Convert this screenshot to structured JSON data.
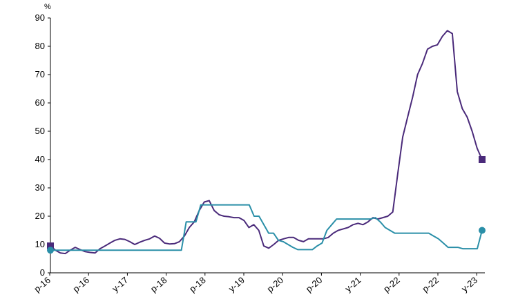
{
  "chart_data": {
    "type": "line",
    "title": "",
    "xlabel": "",
    "ylabel": "%",
    "ylim": [
      0,
      90
    ],
    "yticks": [
      0,
      10,
      20,
      30,
      40,
      50,
      60,
      70,
      80,
      90
    ],
    "grid": false,
    "legend": "none",
    "x_tick_labels": [
      "p-16",
      "p-16",
      "y-17",
      "p-18",
      "p-18",
      "y-19",
      "p-20",
      "p-20",
      "y-21",
      "p-22",
      "p-22",
      "y-23"
    ],
    "series": [
      {
        "color": "#4a2a7a",
        "end_marker": "square",
        "values": [
          9.5,
          8.0,
          7.0,
          6.8,
          8.0,
          9.0,
          8.2,
          7.5,
          7.2,
          7.0,
          8.5,
          9.5,
          10.5,
          11.5,
          12.0,
          11.8,
          11.0,
          10.0,
          10.8,
          11.5,
          12.0,
          13.0,
          12.2,
          10.5,
          10.2,
          10.3,
          11.0,
          13.0,
          16.0,
          18.0,
          22.0,
          25.0,
          25.5,
          22.0,
          20.5,
          20.0,
          19.8,
          19.5,
          19.5,
          18.5,
          16.0,
          17.0,
          15.0,
          9.5,
          8.7,
          10.0,
          11.5,
          12.0,
          12.5,
          12.5,
          11.5,
          11.0,
          12.0,
          12.0,
          12.0,
          12.0,
          12.5,
          14.0,
          15.0,
          15.5,
          16.0,
          17.0,
          17.5,
          17.0,
          18.0,
          19.5,
          19.0,
          19.5,
          20.0,
          21.5,
          35.0,
          48.0,
          55.0,
          62.0,
          70.0,
          74.0,
          79.0,
          80.0,
          80.5,
          83.5,
          85.5,
          84.5,
          64.0,
          58.0,
          55.0,
          50.0,
          44.0,
          40.0
        ]
      },
      {
        "color": "#2a8fa8",
        "end_marker": "circle",
        "values": [
          8.0,
          8.0,
          8.0,
          8.0,
          8.0,
          8.0,
          8.0,
          8.0,
          8.0,
          8.0,
          8.0,
          8.0,
          8.0,
          8.0,
          8.0,
          8.0,
          8.0,
          8.0,
          8.0,
          8.0,
          8.0,
          8.0,
          8.0,
          8.0,
          8.0,
          8.0,
          8.0,
          8.0,
          18.0,
          18.0,
          18.0,
          24.0,
          24.0,
          24.0,
          24.0,
          24.0,
          24.0,
          24.0,
          24.0,
          24.0,
          24.0,
          24.0,
          20.0,
          20.0,
          17.0,
          14.0,
          14.0,
          11.5,
          11.0,
          10.0,
          9.0,
          8.2,
          8.2,
          8.2,
          8.2,
          9.5,
          10.5,
          15.0,
          17.0,
          19.0,
          19.0,
          19.0,
          19.0,
          19.0,
          19.0,
          19.0,
          19.0,
          19.5,
          18.0,
          16.0,
          15.0,
          14.0,
          14.0,
          14.0,
          14.0,
          14.0,
          14.0,
          14.0,
          14.0,
          13.0,
          12.0,
          10.5,
          9.0,
          9.0,
          9.0,
          8.5,
          8.5,
          8.5,
          8.5,
          15.0
        ]
      }
    ]
  }
}
